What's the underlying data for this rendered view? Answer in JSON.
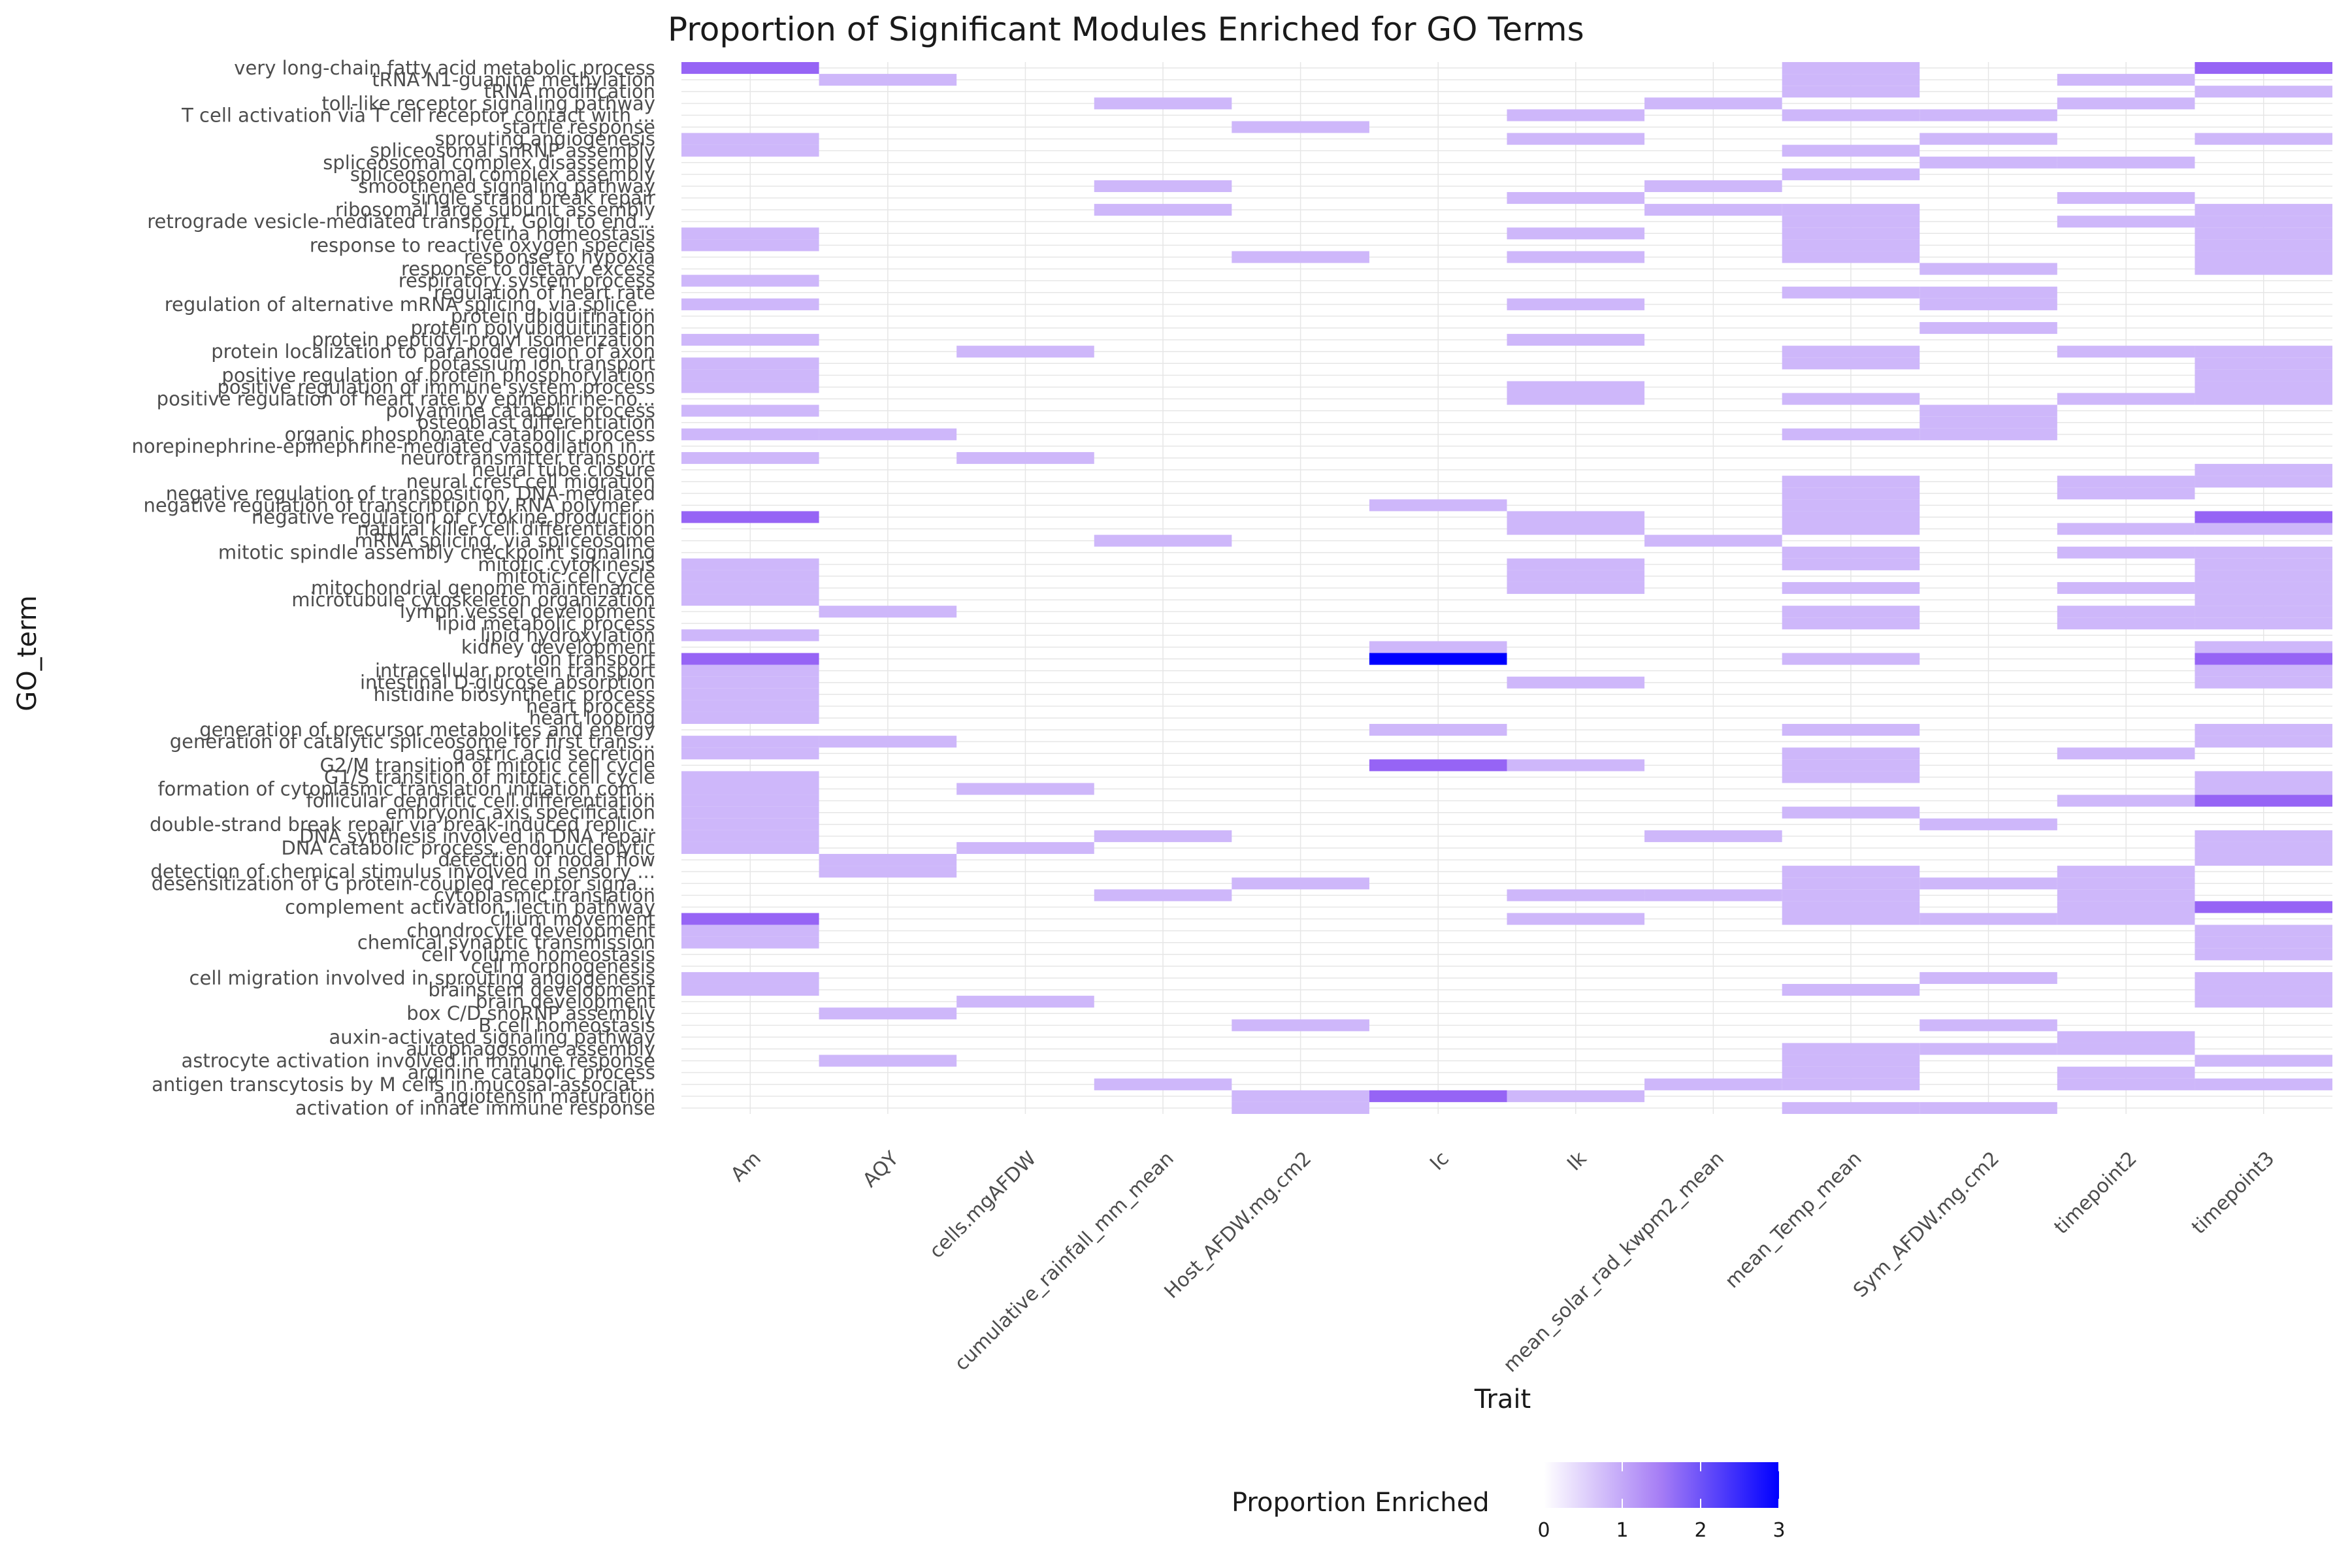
{
  "chart_data": {
    "type": "heatmap",
    "title": "Proportion of Significant Modules Enriched for GO Terms",
    "xlabel": "Trait",
    "ylabel": "GO_term",
    "x_categories": [
      "Am",
      "AQY",
      "cells.mgAFDW",
      "cumulative_rainfall_mm_mean",
      "Host_AFDW.mg.cm2",
      "Ic",
      "Ik",
      "mean_solar_rad_kwpm2_mean",
      "mean_Temp_mean",
      "Sym_AFDW.mg.cm2",
      "timepoint2",
      "timepoint3"
    ],
    "y_categories_top_to_bottom": [
      "very long-chain fatty acid metabolic process",
      "tRNA N1-guanine methylation",
      "tRNA modification",
      "toll-like receptor signaling pathway",
      "T cell activation via T cell receptor contact with ...",
      "startle response",
      "sprouting angiogenesis",
      "spliceosomal snRNP assembly",
      "spliceosomal complex disassembly",
      "spliceosomal complex assembly",
      "smoothened signaling pathway",
      "single strand break repair",
      "ribosomal large subunit assembly",
      "retrograde vesicle-mediated transport, Golgi to end...",
      "retina homeostasis",
      "response to reactive oxygen species",
      "response to hypoxia",
      "response to dietary excess",
      "respiratory system process",
      "regulation of heart rate",
      "regulation of alternative mRNA splicing, via splice...",
      "protein ubiquitination",
      "protein polyubiquitination",
      "protein peptidyl-prolyl isomerization",
      "protein localization to paranode region of axon",
      "potassium ion transport",
      "positive regulation of protein phosphorylation",
      "positive regulation of immune system process",
      "positive regulation of heart rate by epinephrine-no...",
      "polyamine catabolic process",
      "osteoblast differentiation",
      "organic phosphonate catabolic process",
      "norepinephrine-epinephrine-mediated vasodilation in...",
      "neurotransmitter transport",
      "neural tube closure",
      "neural crest cell migration",
      "negative regulation of transposition, DNA-mediated",
      "negative regulation of transcription by RNA polymer...",
      "negative regulation of cytokine production",
      "natural killer cell differentiation",
      "mRNA splicing, via spliceosome",
      "mitotic spindle assembly checkpoint signaling",
      "mitotic cytokinesis",
      "mitotic cell cycle",
      "mitochondrial genome maintenance",
      "microtubule cytoskeleton organization",
      "lymph vessel development",
      "lipid metabolic process",
      "lipid hydroxylation",
      "kidney development",
      "ion transport",
      "intracellular protein transport",
      "intestinal D-glucose absorption",
      "histidine biosynthetic process",
      "heart process",
      "heart looping",
      "generation of precursor metabolites and energy",
      "generation of catalytic spliceosome for first trans...",
      "gastric acid secretion",
      "G2/M transition of mitotic cell cycle",
      "G1/S transition of mitotic cell cycle",
      "formation of cytoplasmic translation initiation com...",
      "follicular dendritic cell differentiation",
      "embryonic axis specification",
      "double-strand break repair via break-induced replic...",
      "DNA synthesis involved in DNA repair",
      "DNA catabolic process, endonucleolytic",
      "detection of nodal flow",
      "detection of chemical stimulus involved in sensory ...",
      "desensitization of G protein-coupled receptor signa...",
      "cytoplasmic translation",
      "complement activation, lectin pathway",
      "cilium movement",
      "chondrocyte development",
      "chemical synaptic transmission",
      "cell volume homeostasis",
      "cell morphogenesis",
      "cell migration involved in sprouting angiogenesis",
      "brainstem development",
      "brain development",
      "box C/D snoRNP assembly",
      "B cell homeostasis",
      "auxin-activated signaling pathway",
      "autophagosome assembly",
      "astrocyte activation involved in immune response",
      "arginine catabolic process",
      "antigen transcytosis by M cells in mucosal-associat...",
      "angiotensin maturation",
      "activation of innate immune response"
    ],
    "values_by_trait": {
      "Am": [
        2,
        0,
        0,
        0,
        0,
        0,
        1,
        1,
        0,
        0,
        0,
        0,
        0,
        0,
        1,
        1,
        0,
        0,
        1,
        0,
        1,
        0,
        0,
        1,
        0,
        1,
        1,
        1,
        0,
        1,
        0,
        1,
        0,
        1,
        0,
        0,
        0,
        0,
        2,
        0,
        0,
        0,
        1,
        1,
        1,
        1,
        0,
        0,
        1,
        0,
        2,
        1,
        1,
        1,
        1,
        1,
        0,
        1,
        1,
        0,
        1,
        1,
        1,
        1,
        1,
        1,
        1,
        0,
        0,
        0,
        0,
        0,
        2,
        1,
        1,
        0,
        0,
        1,
        1,
        0,
        0,
        0,
        0,
        0,
        0,
        0,
        0,
        0,
        0
      ],
      "AQY": [
        0,
        1,
        0,
        0,
        0,
        0,
        0,
        0,
        0,
        0,
        0,
        0,
        0,
        0,
        0,
        0,
        0,
        0,
        0,
        0,
        0,
        0,
        0,
        0,
        0,
        0,
        0,
        0,
        0,
        0,
        0,
        1,
        0,
        0,
        0,
        0,
        0,
        0,
        0,
        0,
        0,
        0,
        0,
        0,
        0,
        0,
        1,
        0,
        0,
        0,
        0,
        0,
        0,
        0,
        0,
        0,
        0,
        1,
        0,
        0,
        0,
        0,
        0,
        0,
        0,
        0,
        0,
        1,
        1,
        0,
        0,
        0,
        0,
        0,
        0,
        0,
        0,
        0,
        0,
        0,
        1,
        0,
        0,
        0,
        1,
        0,
        0,
        0,
        0
      ],
      "cells.mgAFDW": [
        0,
        0,
        0,
        0,
        0,
        0,
        0,
        0,
        0,
        0,
        0,
        0,
        0,
        0,
        0,
        0,
        0,
        0,
        0,
        0,
        0,
        0,
        0,
        0,
        1,
        0,
        0,
        0,
        0,
        0,
        0,
        0,
        0,
        1,
        0,
        0,
        0,
        0,
        0,
        0,
        0,
        0,
        0,
        0,
        0,
        0,
        0,
        0,
        0,
        0,
        0,
        0,
        0,
        0,
        0,
        0,
        0,
        0,
        0,
        0,
        0,
        1,
        0,
        0,
        0,
        0,
        1,
        0,
        0,
        0,
        0,
        0,
        0,
        0,
        0,
        0,
        0,
        0,
        0,
        1,
        0,
        0,
        0,
        0,
        0,
        0,
        0,
        0,
        0
      ],
      "cumulative_rainfall_mm_mean": [
        0,
        0,
        0,
        1,
        0,
        0,
        0,
        0,
        0,
        0,
        1,
        0,
        1,
        0,
        0,
        0,
        0,
        0,
        0,
        0,
        0,
        0,
        0,
        0,
        0,
        0,
        0,
        0,
        0,
        0,
        0,
        0,
        0,
        0,
        0,
        0,
        0,
        0,
        0,
        0,
        1,
        0,
        0,
        0,
        0,
        0,
        0,
        0,
        0,
        0,
        0,
        0,
        0,
        0,
        0,
        0,
        0,
        0,
        0,
        0,
        0,
        0,
        0,
        0,
        0,
        1,
        0,
        0,
        0,
        0,
        1,
        0,
        0,
        0,
        0,
        0,
        0,
        0,
        0,
        0,
        0,
        0,
        0,
        0,
        0,
        0,
        1,
        0,
        0
      ],
      "Host_AFDW.mg.cm2": [
        0,
        0,
        0,
        0,
        0,
        1,
        0,
        0,
        0,
        0,
        0,
        0,
        0,
        0,
        0,
        0,
        1,
        0,
        0,
        0,
        0,
        0,
        0,
        0,
        0,
        0,
        0,
        0,
        0,
        0,
        0,
        0,
        0,
        0,
        0,
        0,
        0,
        0,
        0,
        0,
        0,
        0,
        0,
        0,
        0,
        0,
        0,
        0,
        0,
        0,
        0,
        0,
        0,
        0,
        0,
        0,
        0,
        0,
        0,
        0,
        0,
        0,
        0,
        0,
        0,
        0,
        0,
        0,
        0,
        1,
        0,
        0,
        0,
        0,
        0,
        0,
        0,
        0,
        0,
        0,
        0,
        1,
        0,
        0,
        0,
        0,
        0,
        1,
        1
      ],
      "Ic": [
        0,
        0,
        0,
        0,
        0,
        0,
        0,
        0,
        0,
        0,
        0,
        0,
        0,
        0,
        0,
        0,
        0,
        0,
        0,
        0,
        0,
        0,
        0,
        0,
        0,
        0,
        0,
        0,
        0,
        0,
        0,
        0,
        0,
        0,
        0,
        0,
        0,
        1,
        0,
        0,
        0,
        0,
        0,
        0,
        0,
        0,
        0,
        0,
        0,
        1,
        3,
        0,
        0,
        0,
        0,
        0,
        1,
        0,
        0,
        2,
        0,
        0,
        0,
        0,
        0,
        0,
        0,
        0,
        0,
        0,
        0,
        0,
        0,
        0,
        0,
        0,
        0,
        0,
        0,
        0,
        0,
        0,
        0,
        0,
        0,
        0,
        0,
        2,
        0
      ],
      "Ik": [
        0,
        0,
        0,
        0,
        1,
        0,
        1,
        0,
        0,
        0,
        0,
        1,
        0,
        0,
        1,
        0,
        1,
        0,
        0,
        0,
        1,
        0,
        0,
        1,
        0,
        0,
        0,
        1,
        1,
        0,
        0,
        0,
        0,
        0,
        0,
        0,
        0,
        0,
        1,
        1,
        0,
        0,
        1,
        1,
        1,
        0,
        0,
        0,
        0,
        0,
        0,
        0,
        1,
        0,
        0,
        0,
        0,
        0,
        0,
        1,
        0,
        0,
        0,
        0,
        0,
        0,
        0,
        0,
        0,
        0,
        1,
        0,
        1,
        0,
        0,
        0,
        0,
        0,
        0,
        0,
        0,
        0,
        0,
        0,
        0,
        0,
        0,
        1,
        0
      ],
      "mean_solar_rad_kwpm2_mean": [
        0,
        0,
        0,
        1,
        0,
        0,
        0,
        0,
        0,
        0,
        1,
        0,
        1,
        0,
        0,
        0,
        0,
        0,
        0,
        0,
        0,
        0,
        0,
        0,
        0,
        0,
        0,
        0,
        0,
        0,
        0,
        0,
        0,
        0,
        0,
        0,
        0,
        0,
        0,
        0,
        1,
        0,
        0,
        0,
        0,
        0,
        0,
        0,
        0,
        0,
        0,
        0,
        0,
        0,
        0,
        0,
        0,
        0,
        0,
        0,
        0,
        0,
        0,
        0,
        0,
        1,
        0,
        0,
        0,
        0,
        1,
        0,
        0,
        0,
        0,
        0,
        0,
        0,
        0,
        0,
        0,
        0,
        0,
        0,
        0,
        0,
        1,
        0,
        0
      ],
      "mean_Temp_mean": [
        1,
        1,
        1,
        0,
        1,
        0,
        0,
        1,
        0,
        1,
        0,
        0,
        1,
        1,
        1,
        1,
        1,
        0,
        0,
        1,
        0,
        0,
        0,
        0,
        1,
        1,
        0,
        0,
        1,
        0,
        0,
        1,
        0,
        0,
        0,
        1,
        1,
        1,
        1,
        1,
        0,
        1,
        1,
        0,
        1,
        0,
        1,
        1,
        0,
        0,
        1,
        0,
        0,
        0,
        0,
        0,
        1,
        0,
        1,
        1,
        1,
        0,
        0,
        1,
        0,
        0,
        0,
        0,
        1,
        1,
        1,
        1,
        1,
        0,
        0,
        0,
        0,
        0,
        1,
        0,
        0,
        0,
        0,
        1,
        1,
        1,
        1,
        0,
        1
      ],
      "Sym_AFDW.mg.cm2": [
        0,
        0,
        0,
        0,
        1,
        0,
        1,
        0,
        1,
        0,
        0,
        0,
        0,
        0,
        0,
        0,
        0,
        1,
        0,
        1,
        1,
        0,
        1,
        0,
        0,
        0,
        0,
        0,
        0,
        1,
        1,
        1,
        0,
        0,
        0,
        0,
        0,
        0,
        0,
        0,
        0,
        0,
        0,
        0,
        0,
        0,
        0,
        0,
        0,
        0,
        0,
        0,
        0,
        0,
        0,
        0,
        0,
        0,
        0,
        0,
        0,
        0,
        0,
        0,
        1,
        0,
        0,
        0,
        0,
        1,
        0,
        0,
        1,
        0,
        0,
        0,
        0,
        1,
        0,
        0,
        0,
        1,
        0,
        1,
        0,
        0,
        0,
        0,
        1
      ],
      "timepoint2": [
        0,
        1,
        0,
        1,
        0,
        0,
        0,
        0,
        1,
        0,
        0,
        1,
        0,
        1,
        0,
        0,
        0,
        0,
        0,
        0,
        0,
        0,
        0,
        0,
        1,
        0,
        0,
        0,
        1,
        0,
        0,
        0,
        0,
        0,
        0,
        1,
        1,
        0,
        0,
        1,
        0,
        1,
        0,
        0,
        1,
        0,
        1,
        1,
        0,
        0,
        0,
        0,
        0,
        0,
        0,
        0,
        0,
        0,
        1,
        0,
        0,
        0,
        1,
        0,
        0,
        0,
        0,
        0,
        1,
        1,
        1,
        1,
        1,
        0,
        0,
        0,
        0,
        0,
        0,
        0,
        0,
        0,
        1,
        1,
        0,
        1,
        1,
        0,
        0
      ],
      "timepoint3": [
        2,
        0,
        1,
        0,
        0,
        0,
        1,
        0,
        0,
        0,
        0,
        0,
        1,
        1,
        1,
        1,
        1,
        1,
        0,
        0,
        0,
        0,
        0,
        0,
        1,
        1,
        1,
        1,
        1,
        0,
        0,
        0,
        0,
        0,
        1,
        1,
        0,
        0,
        2,
        1,
        0,
        1,
        1,
        1,
        1,
        1,
        1,
        1,
        0,
        1,
        2,
        1,
        1,
        0,
        0,
        0,
        1,
        1,
        0,
        0,
        1,
        1,
        2,
        0,
        0,
        1,
        1,
        1,
        0,
        0,
        0,
        2,
        0,
        1,
        1,
        1,
        0,
        1,
        1,
        1,
        0,
        0,
        0,
        0,
        1,
        0,
        1,
        0,
        0
      ]
    },
    "color_scale": {
      "title": "Proportion Enriched",
      "domain": [
        0,
        3
      ],
      "ticks": [
        0,
        1,
        2,
        3
      ],
      "low_color": "#ffffff",
      "high_color": "#0000ff"
    },
    "grid": true,
    "legend_position": "bottom"
  }
}
